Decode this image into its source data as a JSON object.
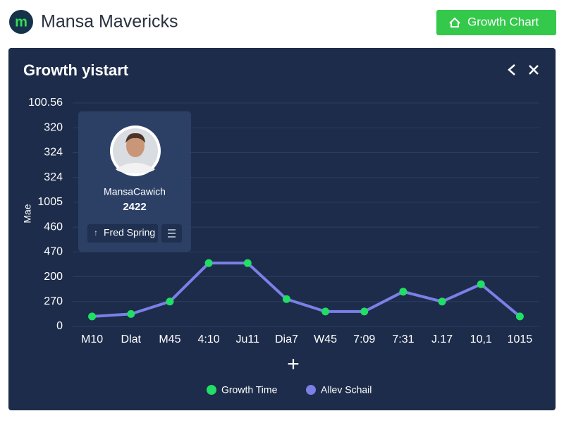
{
  "header": {
    "logo": "m",
    "title": "Mansa Mavericks",
    "button": "Growth Chart"
  },
  "card": {
    "name": "MansaCawich",
    "number": "2422",
    "button": "Fred Spring"
  },
  "add_button": "+",
  "chart_data": {
    "type": "line",
    "title": "Growth yistart",
    "y_label": "Mae",
    "categories": [
      "M10",
      "Dlat",
      "M45",
      "4:10",
      "Ju11",
      "Dia7",
      "W45",
      "7:09",
      "7:31",
      "J.17",
      "10,1",
      "1015"
    ],
    "series": [
      {
        "name": "Allev Schail",
        "color": "#7b80e6",
        "marker_color": "#22dd66",
        "values": [
          0.4,
          0.5,
          1.0,
          2.55,
          2.55,
          1.1,
          0.6,
          0.6,
          1.4,
          1.0,
          1.7,
          0.4
        ]
      }
    ],
    "legend": [
      {
        "name": "Growth Time",
        "color": "#22dd66"
      },
      {
        "name": "Allev Schail",
        "color": "#7b80e6"
      }
    ],
    "ylim": [
      0,
      9
    ],
    "yticks": [
      0,
      {
        "value": 1,
        "label": "270"
      },
      {
        "value": 2,
        "label": "200"
      },
      {
        "value": 3,
        "label": "470"
      },
      {
        "value": 4,
        "label": "460"
      },
      {
        "value": 5,
        "label": "1005"
      },
      {
        "value": 6,
        "label": "324"
      },
      {
        "value": 7,
        "label": "324"
      },
      {
        "value": 8,
        "label": "320"
      },
      {
        "value": 9,
        "label": "100.56"
      }
    ],
    "grid": true
  }
}
